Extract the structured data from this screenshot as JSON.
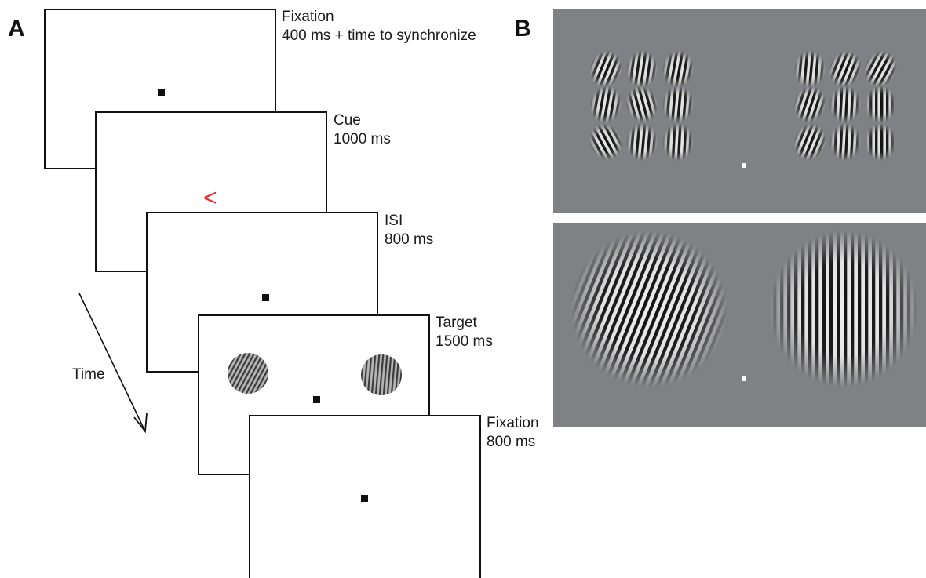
{
  "panel_a": {
    "letter": "A",
    "time_label": "Time",
    "frames": [
      {
        "name": "fixation-frame",
        "label_line1": "Fixation",
        "label_line2": "400 ms + time to synchronize"
      },
      {
        "name": "cue-frame",
        "label_line1": "Cue",
        "label_line2": "1000 ms",
        "cue_symbol": "<"
      },
      {
        "name": "isi-frame",
        "label_line1": "ISI",
        "label_line2": "800 ms"
      },
      {
        "name": "target-frame",
        "label_line1": "Target",
        "label_line2": "1500 ms"
      },
      {
        "name": "fixation-final-frame",
        "label_line1": "Fixation",
        "label_line2": "800 ms"
      }
    ]
  },
  "panel_b": {
    "letter": "B"
  },
  "colors": {
    "cue": "#e8282d",
    "stimulus_background": "#808185",
    "frame_border": "#111111"
  }
}
